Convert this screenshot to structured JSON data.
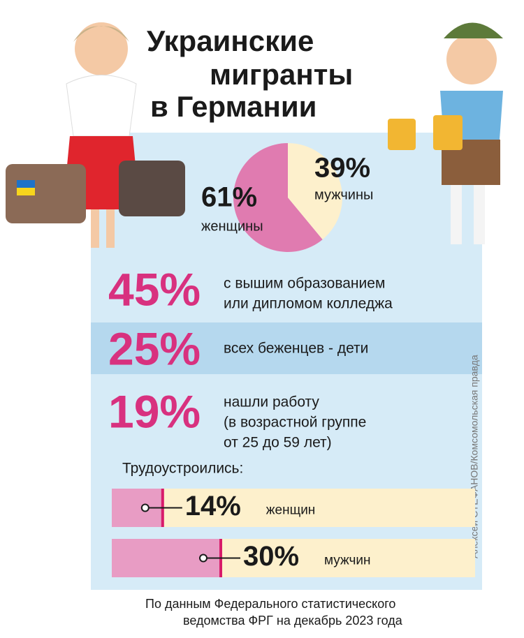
{
  "title_lines": [
    "Украинские",
    "мигранты",
    "в Германии"
  ],
  "chart_data": [
    {
      "type": "pie",
      "categories": [
        "женщины",
        "мужчины"
      ],
      "values": [
        61,
        39
      ],
      "value_labels": [
        "61%",
        "39%"
      ],
      "colors": [
        "#e07bb0",
        "#fdf0cc"
      ]
    },
    {
      "type": "bar",
      "title": "Трудоустроились:",
      "categories": [
        "женщин",
        "мужчин"
      ],
      "values": [
        14,
        30
      ],
      "value_labels": [
        "14%",
        "30%"
      ],
      "xlim": [
        0,
        100
      ],
      "color": "#e89cc4",
      "track_color": "#fdf0cc",
      "end_color": "#d81b6a"
    }
  ],
  "stats": [
    {
      "label": "45%",
      "lines": [
        "с вышим образованием",
        "или дипломом колледжа"
      ]
    },
    {
      "label": "25%",
      "lines": [
        "всех беженцев - дети"
      ]
    },
    {
      "label": "19%",
      "lines": [
        "нашли работу",
        "(в возрастной группе",
        "от 25 до 59 лет)"
      ]
    }
  ],
  "source_lines": [
    "По данным Федерального статистического",
    "ведомства ФРГ на декабрь 2023 года"
  ],
  "credit": "Алексей СТЕФАНОВ/Комсомольская правда"
}
